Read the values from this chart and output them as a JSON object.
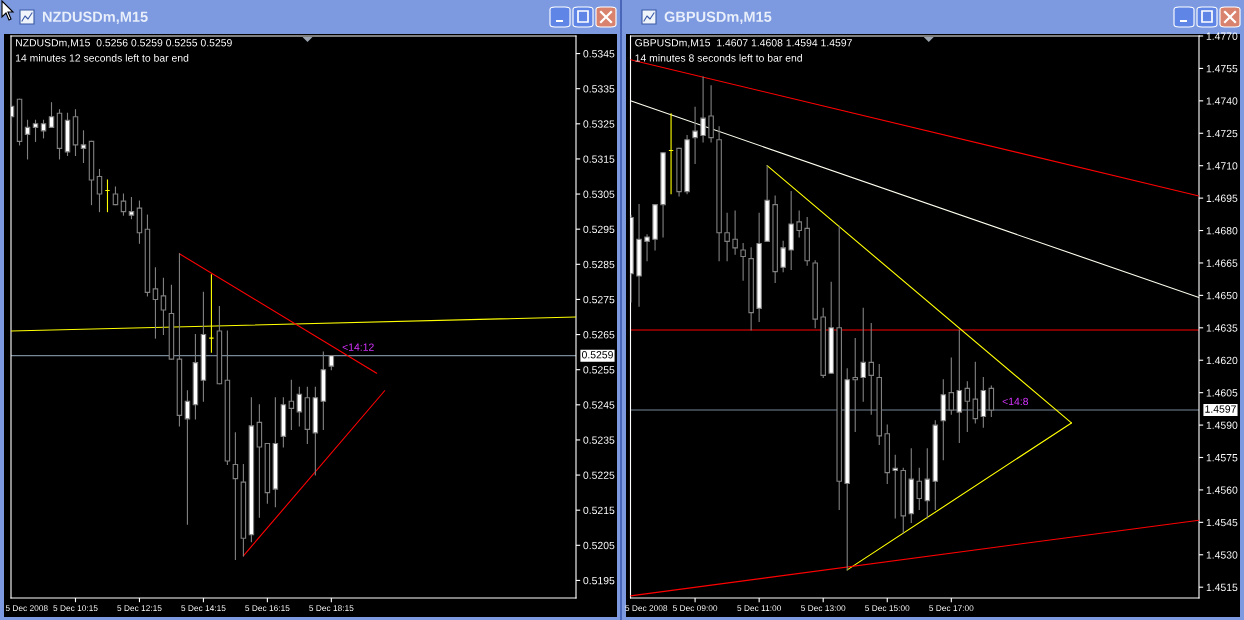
{
  "chart_data": [
    {
      "type": "candlestick",
      "title": "NZDUSDm,M15",
      "annotations": [
        "NZDUSDm,M15  0.5256 0.5259 0.5255 0.5259",
        "14 minutes 12 seconds left to bar end",
        "<14:12",
        "5 Dec 2008"
      ],
      "x": [
        "2008-12-05T08:15",
        "2008-12-05T08:30",
        "2008-12-05T08:45",
        "2008-12-05T09:00",
        "2008-12-05T09:15",
        "2008-12-05T09:30",
        "2008-12-05T09:45",
        "2008-12-05T10:00",
        "2008-12-05T10:15",
        "2008-12-05T10:30",
        "2008-12-05T10:45",
        "2008-12-05T11:00",
        "2008-12-05T11:15",
        "2008-12-05T11:30",
        "2008-12-05T11:45",
        "2008-12-05T12:00",
        "2008-12-05T12:15",
        "2008-12-05T12:30",
        "2008-12-05T12:45",
        "2008-12-05T13:00",
        "2008-12-05T13:15",
        "2008-12-05T13:30",
        "2008-12-05T13:45",
        "2008-12-05T14:00",
        "2008-12-05T14:15",
        "2008-12-05T14:30",
        "2008-12-05T14:45",
        "2008-12-05T15:00",
        "2008-12-05T15:15",
        "2008-12-05T15:30",
        "2008-12-05T15:45",
        "2008-12-05T16:00",
        "2008-12-05T16:15",
        "2008-12-05T16:30",
        "2008-12-05T16:45",
        "2008-12-05T17:00",
        "2008-12-05T17:15",
        "2008-12-05T17:30",
        "2008-12-05T17:45",
        "2008-12-05T18:00",
        "2008-12-05T18:15"
      ],
      "ohlc": [
        [
          0.5327,
          0.5338,
          0.5325,
          0.533
        ],
        [
          0.5332,
          0.5332,
          0.5319,
          0.532
        ],
        [
          0.5322,
          0.5326,
          0.5315,
          0.5324
        ],
        [
          0.5324,
          0.5326,
          0.532,
          0.5325
        ],
        [
          0.5323,
          0.5326,
          0.5321,
          0.5325
        ],
        [
          0.5324,
          0.5331,
          0.5324,
          0.5327
        ],
        [
          0.5328,
          0.5329,
          0.5315,
          0.5318
        ],
        [
          0.5317,
          0.5328,
          0.5316,
          0.5326
        ],
        [
          0.5327,
          0.5329,
          0.5316,
          0.5319
        ],
        [
          0.5318,
          0.5323,
          0.5314,
          0.5319
        ],
        [
          0.532,
          0.532,
          0.5302,
          0.5309
        ],
        [
          0.531,
          0.5312,
          0.53,
          0.5305
        ],
        [
          0.5306,
          0.5309,
          0.53,
          0.5306
        ],
        [
          0.5305,
          0.5307,
          0.5302,
          0.5302
        ],
        [
          0.5303,
          0.5305,
          0.5299,
          0.53
        ],
        [
          0.5299,
          0.5304,
          0.5298,
          0.53
        ],
        [
          0.5301,
          0.5303,
          0.5291,
          0.5294
        ],
        [
          0.5295,
          0.5299,
          0.5276,
          0.5277
        ],
        [
          0.5278,
          0.5284,
          0.5264,
          0.5275
        ],
        [
          0.5276,
          0.5281,
          0.5265,
          0.5272
        ],
        [
          0.5271,
          0.5279,
          0.5258,
          0.5258
        ],
        [
          0.5258,
          0.5288,
          0.5239,
          0.5242
        ],
        [
          0.5241,
          0.5249,
          0.5211,
          0.5246
        ],
        [
          0.5245,
          0.5265,
          0.5241,
          0.5257
        ],
        [
          0.5252,
          0.5277,
          0.5246,
          0.5265
        ],
        [
          0.5264,
          0.5282,
          0.526,
          0.5264
        ],
        [
          0.5266,
          0.5273,
          0.5251,
          0.5251
        ],
        [
          0.5252,
          0.5266,
          0.5228,
          0.5229
        ],
        [
          0.5228,
          0.5237,
          0.5201,
          0.5224
        ],
        [
          0.5223,
          0.5228,
          0.5202,
          0.5207
        ],
        [
          0.5208,
          0.5247,
          0.5206,
          0.5239
        ],
        [
          0.524,
          0.5245,
          0.5213,
          0.5233
        ],
        [
          0.5234,
          0.5234,
          0.5217,
          0.522
        ],
        [
          0.5221,
          0.5247,
          0.5216,
          0.5234
        ],
        [
          0.5236,
          0.5247,
          0.5233,
          0.5245
        ],
        [
          0.5246,
          0.5252,
          0.5238,
          0.5244
        ],
        [
          0.5243,
          0.525,
          0.5239,
          0.5248
        ],
        [
          0.5247,
          0.525,
          0.5234,
          0.5238
        ],
        [
          0.5237,
          0.525,
          0.5225,
          0.5247
        ],
        [
          0.5246,
          0.526,
          0.5238,
          0.5255
        ],
        [
          0.5256,
          0.5259,
          0.5255,
          0.5259
        ]
      ],
      "color": "#808080",
      "colors": [
        "#ffffff",
        "#000000",
        "#ffffff",
        "#ffffff",
        "#ffffff",
        "#ffffff",
        "#000000",
        "#ffffff",
        "#000000",
        "#ffffff",
        "#000000",
        "#000000",
        "#ffff00",
        "#000000",
        "#000000",
        "#ffffff",
        "#000000",
        "#000000",
        "#000000",
        "#000000",
        "#000000",
        "#000000",
        "#ffffff",
        "#ffffff",
        "#ffffff",
        "#ffff00",
        "#000000",
        "#000000",
        "#000000",
        "#000000",
        "#ffffff",
        "#000000",
        "#000000",
        "#ffffff",
        "#ffffff",
        "#000000",
        "#ffffff",
        "#000000",
        "#ffffff",
        "#ffffff",
        "#ffffff"
      ],
      "series": [
        {
          "type": "line",
          "color": "#ffff00",
          "x": [
            "2008-12-05T08:14",
            "2008-12-06T01:54"
          ],
          "values": [
            0.5266,
            0.527
          ]
        },
        {
          "type": "line",
          "color": "#ff0000",
          "x": [
            "2008-12-05T13:30",
            "2008-12-05T19:40"
          ],
          "values": [
            0.5288,
            0.5254
          ]
        },
        {
          "type": "line",
          "color": "#ff0000",
          "x": [
            "2008-12-05T15:30",
            "2008-12-05T19:55"
          ],
          "values": [
            0.5202,
            0.5249
          ]
        }
      ],
      "ref_lines": [
        {
          "axis": "y",
          "value": 0.5259,
          "label": "0.5259",
          "color": "#778899"
        }
      ],
      "xlim": [
        "2008-12-05T08:14",
        "2008-12-06T01:54"
      ],
      "xticks": [
        {
          "value": "2008-12-05T10:15",
          "label": "5 Dec 10:15"
        },
        {
          "value": "2008-12-05T12:15",
          "label": "5 Dec 12:15"
        },
        {
          "value": "2008-12-05T14:15",
          "label": "5 Dec 14:15"
        },
        {
          "value": "2008-12-05T16:15",
          "label": "5 Dec 16:15"
        },
        {
          "value": "2008-12-05T18:15",
          "label": "5 Dec 18:15"
        }
      ],
      "ylim": [
        0.519,
        0.535
      ],
      "yticks": [
        0.5195,
        0.5205,
        0.5215,
        0.5225,
        0.5235,
        0.5245,
        0.5255,
        0.5265,
        0.5275,
        0.5285,
        0.5295,
        0.5305,
        0.5315,
        0.5325,
        0.5335,
        0.5345
      ]
    },
    {
      "type": "candlestick",
      "title": "GBPUSDm,M15",
      "annotations": [
        "GBPUSDm,M15  1.4607 1.4608 1.4594 1.4597",
        "14 minutes 8 seconds left to bar end",
        "<14:8",
        "5 Dec 2008"
      ],
      "x": [
        "2008-12-05T07:00",
        "2008-12-05T07:15",
        "2008-12-05T07:30",
        "2008-12-05T07:45",
        "2008-12-05T08:00",
        "2008-12-05T08:15",
        "2008-12-05T08:30",
        "2008-12-05T08:45",
        "2008-12-05T09:00",
        "2008-12-05T09:15",
        "2008-12-05T09:30",
        "2008-12-05T09:45",
        "2008-12-05T10:00",
        "2008-12-05T10:15",
        "2008-12-05T10:30",
        "2008-12-05T10:45",
        "2008-12-05T11:00",
        "2008-12-05T11:15",
        "2008-12-05T11:30",
        "2008-12-05T11:45",
        "2008-12-05T12:00",
        "2008-12-05T12:15",
        "2008-12-05T12:30",
        "2008-12-05T12:45",
        "2008-12-05T13:00",
        "2008-12-05T13:15",
        "2008-12-05T13:30",
        "2008-12-05T13:45",
        "2008-12-05T14:00",
        "2008-12-05T14:15",
        "2008-12-05T14:30",
        "2008-12-05T14:45",
        "2008-12-05T15:00",
        "2008-12-05T15:15",
        "2008-12-05T15:30",
        "2008-12-05T15:45",
        "2008-12-05T16:00",
        "2008-12-05T16:15",
        "2008-12-05T16:30",
        "2008-12-05T16:45",
        "2008-12-05T17:00",
        "2008-12-05T17:15",
        "2008-12-05T17:30",
        "2008-12-05T17:45",
        "2008-12-05T18:00",
        "2008-12-05T18:15"
      ],
      "ohlc": [
        [
          1.466,
          1.4687,
          1.4647,
          1.4686
        ],
        [
          1.4659,
          1.4692,
          1.4645,
          1.4676
        ],
        [
          1.4675,
          1.4678,
          1.4666,
          1.4677
        ],
        [
          1.4676,
          1.4692,
          1.4671,
          1.4692
        ],
        [
          1.4692,
          1.4716,
          1.4677,
          1.4716
        ],
        [
          1.4717,
          1.4734,
          1.4697,
          1.4717
        ],
        [
          1.4718,
          1.4718,
          1.4696,
          1.4698
        ],
        [
          1.4698,
          1.4724,
          1.4697,
          1.4722
        ],
        [
          1.4723,
          1.4737,
          1.4711,
          1.4726
        ],
        [
          1.4724,
          1.4751,
          1.4721,
          1.4732
        ],
        [
          1.4733,
          1.4747,
          1.4721,
          1.4723
        ],
        [
          1.4722,
          1.4728,
          1.4666,
          1.4679
        ],
        [
          1.4679,
          1.4688,
          1.4666,
          1.4675
        ],
        [
          1.4676,
          1.4689,
          1.4669,
          1.4672
        ],
        [
          1.4671,
          1.4674,
          1.4657,
          1.4668
        ],
        [
          1.4667,
          1.4672,
          1.4634,
          1.4642
        ],
        [
          1.4644,
          1.4688,
          1.4638,
          1.4674
        ],
        [
          1.4675,
          1.471,
          1.4675,
          1.4694
        ],
        [
          1.4692,
          1.4696,
          1.4656,
          1.4661
        ],
        [
          1.4663,
          1.4675,
          1.4661,
          1.4672
        ],
        [
          1.4671,
          1.4698,
          1.4662,
          1.4683
        ],
        [
          1.4684,
          1.4689,
          1.4677,
          1.468
        ],
        [
          1.4681,
          1.4686,
          1.4664,
          1.4666
        ],
        [
          1.4665,
          1.4666,
          1.4635,
          1.4639
        ],
        [
          1.464,
          1.4644,
          1.4612,
          1.4613
        ],
        [
          1.4614,
          1.4656,
          1.4614,
          1.4635
        ],
        [
          1.4635,
          1.4682,
          1.4551,
          1.4564
        ],
        [
          1.4563,
          1.4616,
          1.4523,
          1.4611
        ],
        [
          1.4612,
          1.463,
          1.4587,
          1.4611
        ],
        [
          1.4612,
          1.4644,
          1.4601,
          1.4619
        ],
        [
          1.4619,
          1.4637,
          1.4595,
          1.4613
        ],
        [
          1.4612,
          1.4618,
          1.4581,
          1.4585
        ],
        [
          1.4586,
          1.459,
          1.4563,
          1.4568
        ],
        [
          1.4569,
          1.4576,
          1.4547,
          1.457
        ],
        [
          1.4569,
          1.457,
          1.454,
          1.4548
        ],
        [
          1.4549,
          1.4579,
          1.4545,
          1.4565
        ],
        [
          1.4564,
          1.457,
          1.4551,
          1.4556
        ],
        [
          1.4555,
          1.4579,
          1.4547,
          1.4565
        ],
        [
          1.4564,
          1.4592,
          1.4551,
          1.459
        ],
        [
          1.4592,
          1.4611,
          1.4574,
          1.4604
        ],
        [
          1.4605,
          1.4621,
          1.4595,
          1.4597
        ],
        [
          1.4596,
          1.4634,
          1.4582,
          1.4606
        ],
        [
          1.4607,
          1.461,
          1.4587,
          1.4601
        ],
        [
          1.4602,
          1.4619,
          1.4591,
          1.4593
        ],
        [
          1.4594,
          1.4612,
          1.4589,
          1.4606
        ],
        [
          1.4607,
          1.4608,
          1.4594,
          1.4597
        ]
      ],
      "color": "#808080",
      "colors": [
        "#ffffff",
        "#ffffff",
        "#ffffff",
        "#ffffff",
        "#ffffff",
        "#ffff00",
        "#000000",
        "#ffffff",
        "#ffffff",
        "#ffffff",
        "#000000",
        "#000000",
        "#000000",
        "#000000",
        "#000000",
        "#000000",
        "#ffffff",
        "#ffffff",
        "#000000",
        "#ffffff",
        "#ffffff",
        "#000000",
        "#000000",
        "#000000",
        "#000000",
        "#ffffff",
        "#000000",
        "#ffffff",
        "#000000",
        "#ffffff",
        "#000000",
        "#000000",
        "#000000",
        "#ffffff",
        "#000000",
        "#ffffff",
        "#000000",
        "#ffffff",
        "#ffffff",
        "#ffffff",
        "#000000",
        "#ffffff",
        "#000000",
        "#000000",
        "#ffffff",
        "#000000"
      ],
      "series": [
        {
          "type": "line",
          "color": "#ff0000",
          "x": [
            "2008-12-05T06:59",
            "2008-12-06T00:44"
          ],
          "values": [
            1.4759,
            1.4696
          ]
        },
        {
          "type": "line",
          "color": "#fffff0",
          "x": [
            "2008-12-05T06:59",
            "2008-12-06T00:44"
          ],
          "values": [
            1.474,
            1.4649
          ]
        },
        {
          "type": "line",
          "color": "#ffff00",
          "x": [
            "2008-12-05T11:15",
            "2008-12-05T20:45"
          ],
          "values": [
            1.471,
            1.4591
          ]
        },
        {
          "type": "line",
          "color": "#ffff00",
          "x": [
            "2008-12-05T13:45",
            "2008-12-05T20:45"
          ],
          "values": [
            1.4523,
            1.4591
          ]
        },
        {
          "type": "line",
          "color": "#ff0000",
          "x": [
            "2008-12-05T06:59",
            "2008-12-06T00:44"
          ],
          "values": [
            1.4511,
            1.4546
          ]
        }
      ],
      "ref_lines": [
        {
          "axis": "y",
          "value": 1.4634,
          "color": "#ff0000"
        },
        {
          "axis": "y",
          "value": 1.4597,
          "label": "1.4597",
          "color": "#778899"
        }
      ],
      "xlim": [
        "2008-12-05T06:59",
        "2008-12-06T00:44"
      ],
      "xticks": [
        {
          "value": "2008-12-05T09:00",
          "label": "5 Dec 09:00"
        },
        {
          "value": "2008-12-05T11:00",
          "label": "5 Dec 11:00"
        },
        {
          "value": "2008-12-05T13:00",
          "label": "5 Dec 13:00"
        },
        {
          "value": "2008-12-05T15:00",
          "label": "5 Dec 15:00"
        },
        {
          "value": "2008-12-05T17:00",
          "label": "5 Dec 17:00"
        }
      ],
      "ylim": [
        1.451,
        1.477
      ],
      "yticks": [
        1.4515,
        {
          "value": 1.453,
          "label": "1.4530"
        },
        1.4545,
        {
          "value": 1.456,
          "label": "1.4560"
        },
        1.4575,
        {
          "value": 1.459,
          "label": "1.4590"
        },
        1.4605,
        {
          "value": 1.462,
          "label": "1.4620"
        },
        1.4635,
        {
          "value": 1.465,
          "label": "1.4650"
        },
        1.4665,
        {
          "value": 1.468,
          "label": "1.4680"
        },
        1.4695,
        {
          "value": 1.471,
          "label": "1.4710"
        },
        1.4725,
        {
          "value": 1.474,
          "label": "1.4740"
        },
        1.4755,
        {
          "value": 1.477,
          "label": "1.4770"
        }
      ]
    }
  ]
}
